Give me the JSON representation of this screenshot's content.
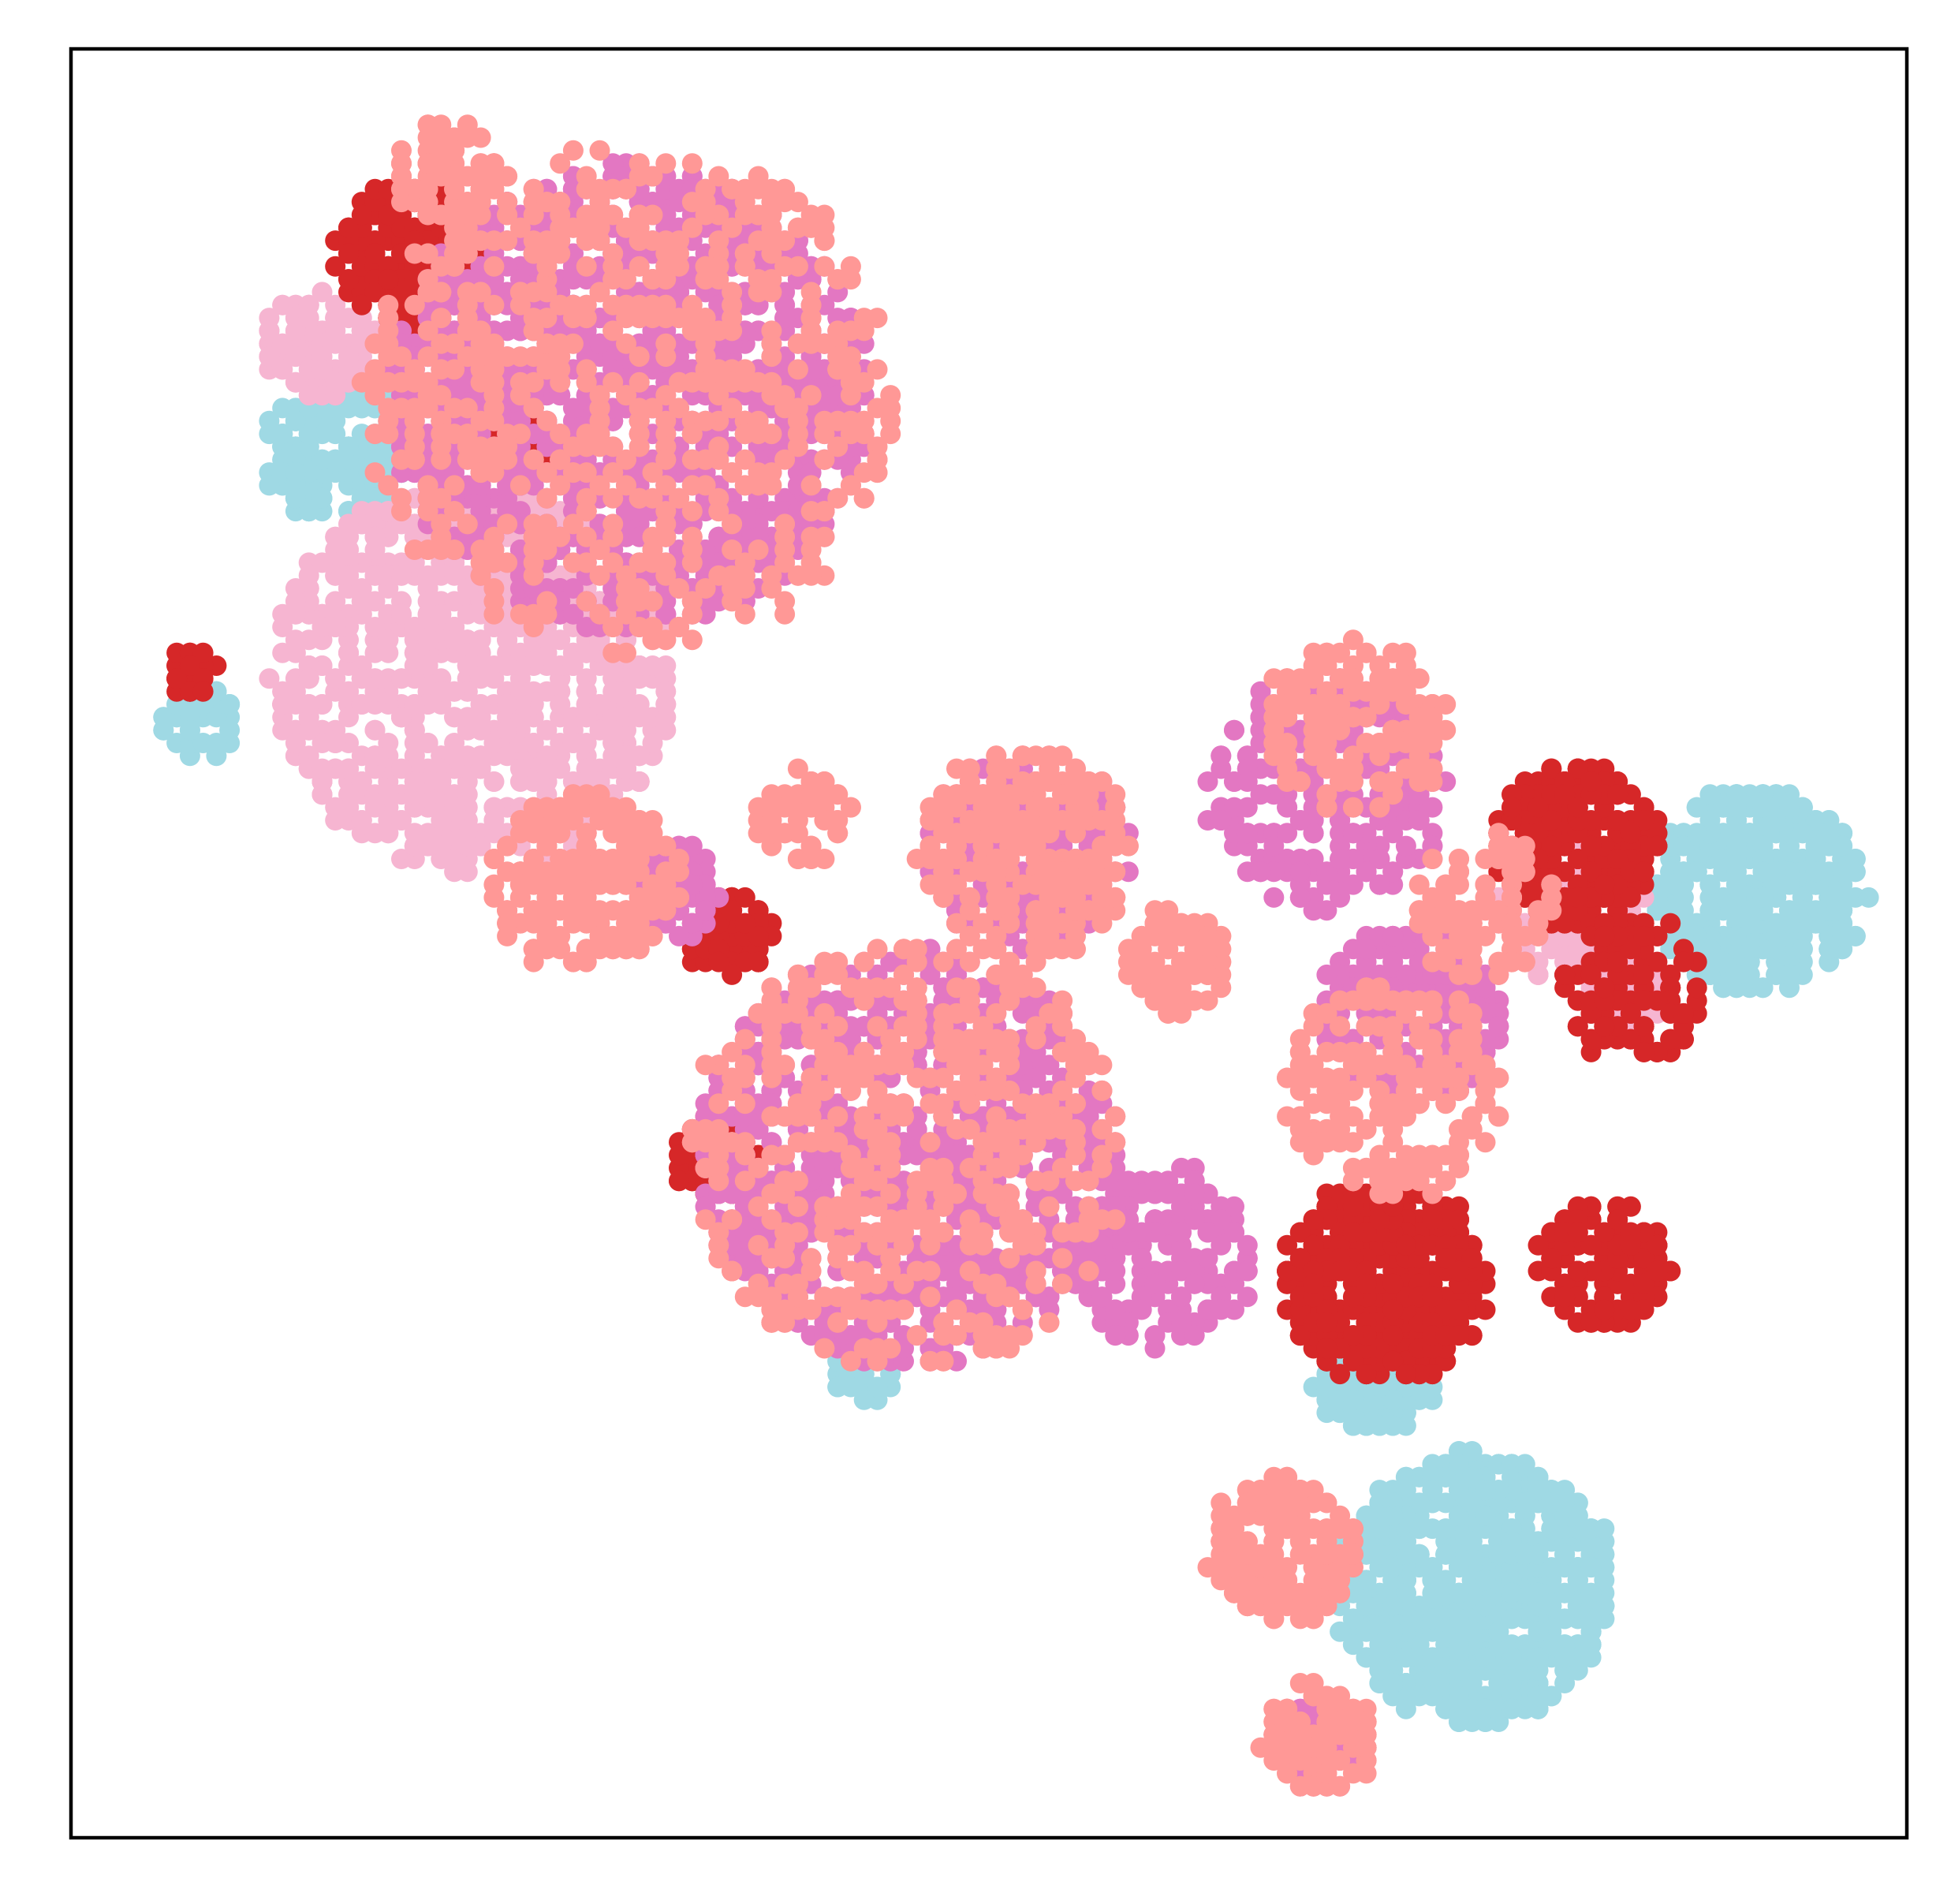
{
  "chart_data": {
    "type": "scatter",
    "title": "",
    "xlabel": "",
    "ylabel": "",
    "xlim": [
      0,
      100
    ],
    "ylim": [
      0,
      100
    ],
    "grid": false,
    "ticks": "none",
    "legend": "none",
    "series": [
      {
        "color": "#9fd9e4",
        "clusters": [
          {
            "cx": 92,
            "cy": 53,
            "r": 5.8,
            "n": 420
          },
          {
            "cx": 76.5,
            "cy": 14,
            "r": 7.5,
            "n": 700
          },
          {
            "cx": 71,
            "cy": 25.5,
            "r": 3,
            "n": 130
          },
          {
            "cx": 14.5,
            "cy": 77.5,
            "r": 4,
            "n": 180
          },
          {
            "cx": 7,
            "cy": 62.5,
            "r": 2,
            "n": 40
          },
          {
            "cx": 43.5,
            "cy": 26,
            "r": 1.8,
            "n": 30
          }
        ]
      },
      {
        "color": "#f6b5d1",
        "clusters": [
          {
            "cx": 22,
            "cy": 65,
            "r": 11,
            "n": 950
          },
          {
            "cx": 13.5,
            "cy": 83.5,
            "r": 3,
            "n": 90
          },
          {
            "cx": 81.5,
            "cy": 52,
            "r": 4,
            "n": 160
          },
          {
            "cx": 85,
            "cy": 47,
            "r": 2.5,
            "n": 60
          }
        ]
      },
      {
        "color": "#d62728",
        "clusters": [
          {
            "cx": 18.5,
            "cy": 88.5,
            "r": 4,
            "n": 260
          },
          {
            "cx": 71.5,
            "cy": 31,
            "r": 5.5,
            "n": 500
          },
          {
            "cx": 82,
            "cy": 55.5,
            "r": 4.5,
            "n": 260
          },
          {
            "cx": 85,
            "cy": 47.5,
            "r": 4,
            "n": 110
          },
          {
            "cx": 83.5,
            "cy": 32,
            "r": 3.5,
            "n": 130
          },
          {
            "cx": 36,
            "cy": 50.5,
            "r": 2.2,
            "n": 70
          },
          {
            "cx": 35,
            "cy": 38,
            "r": 2.2,
            "n": 70
          },
          {
            "cx": 6.5,
            "cy": 65,
            "r": 1.3,
            "n": 25
          },
          {
            "cx": 24,
            "cy": 78,
            "r": 2.2,
            "n": 50
          }
        ]
      },
      {
        "color": "#e377c2",
        "clusters": [
          {
            "cx": 30.5,
            "cy": 80.5,
            "r": 13,
            "n": 1300
          },
          {
            "cx": 45.5,
            "cy": 38,
            "r": 11.5,
            "n": 1000
          },
          {
            "cx": 68.5,
            "cy": 58.5,
            "r": 6.5,
            "n": 260
          },
          {
            "cx": 73,
            "cy": 46,
            "r": 5,
            "n": 220
          },
          {
            "cx": 52,
            "cy": 55,
            "r": 5.5,
            "n": 220
          },
          {
            "cx": 59.5,
            "cy": 32.5,
            "r": 5,
            "n": 190
          },
          {
            "cx": 68,
            "cy": 5,
            "r": 2.5,
            "n": 50
          },
          {
            "cx": 33,
            "cy": 53,
            "r": 2.5,
            "n": 60
          }
        ]
      },
      {
        "color": "#ff9896",
        "clusters": [
          {
            "cx": 30.5,
            "cy": 80.5,
            "r": 14.5,
            "n": 650
          },
          {
            "cx": 45.5,
            "cy": 38,
            "r": 12,
            "n": 480
          },
          {
            "cx": 52,
            "cy": 55,
            "r": 6,
            "n": 260
          },
          {
            "cx": 66,
            "cy": 16,
            "r": 4,
            "n": 200
          },
          {
            "cx": 68,
            "cy": 5.5,
            "r": 3,
            "n": 100
          },
          {
            "cx": 28,
            "cy": 53.5,
            "r": 5,
            "n": 230
          },
          {
            "cx": 70,
            "cy": 62,
            "r": 5,
            "n": 150
          },
          {
            "cx": 72,
            "cy": 42,
            "r": 6,
            "n": 200
          },
          {
            "cx": 77,
            "cy": 52,
            "r": 4,
            "n": 100
          },
          {
            "cx": 20.5,
            "cy": 93,
            "r": 3,
            "n": 80
          },
          {
            "cx": 60,
            "cy": 49,
            "r": 3,
            "n": 80
          },
          {
            "cx": 40,
            "cy": 57,
            "r": 2.5,
            "n": 50
          }
        ]
      }
    ]
  }
}
